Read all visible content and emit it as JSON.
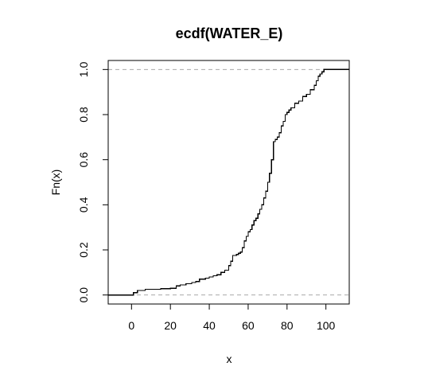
{
  "chart_data": {
    "type": "line",
    "step": true,
    "title": "ecdf(WATER_E)",
    "xlabel": "x",
    "ylabel": "Fn(x)",
    "xlim": [
      -12,
      112
    ],
    "ylim": [
      -0.04,
      1.04
    ],
    "xticks": [
      0,
      20,
      40,
      60,
      80,
      100
    ],
    "yticks": [
      0.0,
      0.2,
      0.4,
      0.6,
      0.8,
      1.0
    ],
    "xtick_labels": [
      "0",
      "20",
      "40",
      "60",
      "80",
      "100"
    ],
    "ytick_labels": [
      "0.0",
      "0.2",
      "0.4",
      "0.6",
      "0.8",
      "1.0"
    ],
    "reference_lines": [
      0,
      1
    ],
    "grid": false,
    "legend": "none",
    "colors": {
      "series": "#000000",
      "reference": "#aaaaaa"
    },
    "series": [
      {
        "x": [
          -12,
          0,
          1,
          3,
          5,
          7,
          10,
          15,
          20,
          23,
          25,
          28,
          31,
          33,
          35,
          38,
          40,
          42,
          44,
          46,
          48,
          50,
          51,
          52,
          54,
          55,
          56,
          57,
          58,
          59,
          60,
          61,
          62,
          63,
          64,
          65,
          66,
          67,
          68,
          69,
          70,
          71,
          72,
          73,
          74,
          75,
          76,
          77,
          78,
          79,
          80,
          81,
          82,
          84,
          86,
          88,
          90,
          92,
          94,
          95,
          96,
          97,
          98,
          99,
          112
        ],
        "y": [
          0.0,
          0.0,
          0.01,
          0.02,
          0.02,
          0.025,
          0.025,
          0.028,
          0.03,
          0.04,
          0.045,
          0.05,
          0.055,
          0.06,
          0.07,
          0.075,
          0.08,
          0.085,
          0.09,
          0.1,
          0.11,
          0.13,
          0.15,
          0.175,
          0.18,
          0.185,
          0.19,
          0.21,
          0.24,
          0.26,
          0.28,
          0.29,
          0.31,
          0.33,
          0.34,
          0.36,
          0.38,
          0.4,
          0.43,
          0.46,
          0.5,
          0.54,
          0.6,
          0.68,
          0.69,
          0.7,
          0.72,
          0.75,
          0.77,
          0.8,
          0.81,
          0.82,
          0.83,
          0.85,
          0.86,
          0.88,
          0.89,
          0.91,
          0.93,
          0.95,
          0.97,
          0.98,
          0.99,
          1.0,
          1.0
        ]
      }
    ]
  }
}
